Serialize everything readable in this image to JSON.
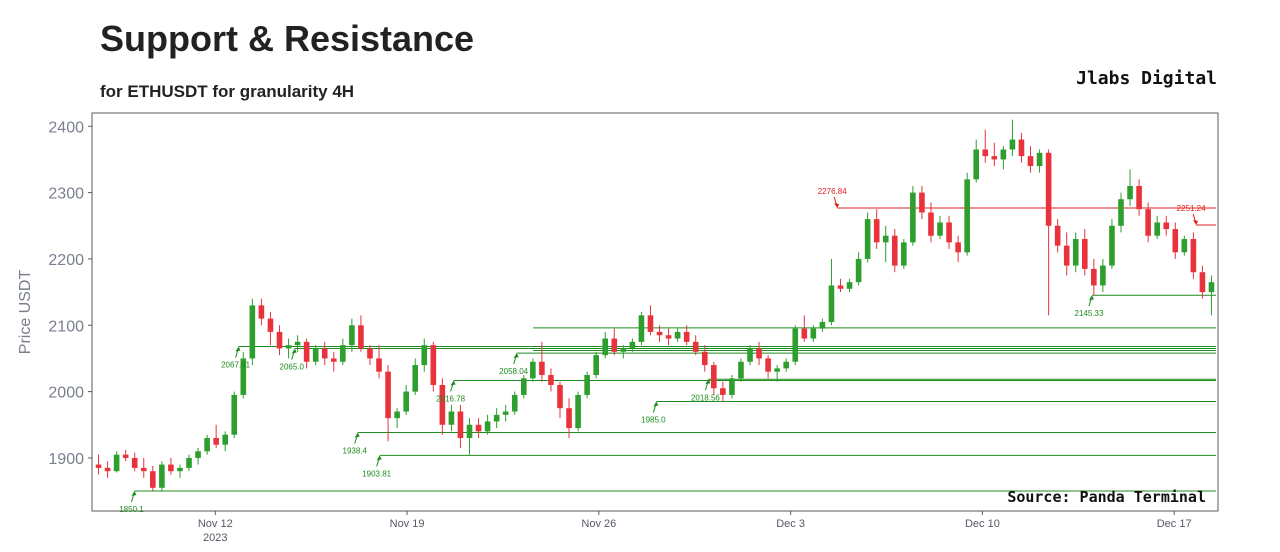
{
  "header": {
    "title": "Support & Resistance",
    "subtitle": "for ETHUSDT for granularity 4H",
    "brand": "Jlabs Digital"
  },
  "chart_data": {
    "type": "candlestick",
    "ylabel": "Price USDT",
    "source": "Source: Panda Terminal",
    "ylim": [
      1820,
      2420
    ],
    "yticks": [
      1900,
      2000,
      2100,
      2200,
      2300,
      2400
    ],
    "xticks": [
      {
        "label": "Nov 12",
        "sub": "2023",
        "day": 12
      },
      {
        "label": "Nov 19",
        "sub": "",
        "day": 19
      },
      {
        "label": "Nov 26",
        "sub": "",
        "day": 26
      },
      {
        "label": "Dec 3",
        "sub": "",
        "day": 33
      },
      {
        "label": "Dec 10",
        "sub": "",
        "day": 40
      },
      {
        "label": "Dec 17",
        "sub": "",
        "day": 47
      }
    ],
    "x_range_days": [
      7.5,
      48.6
    ],
    "grid": false,
    "colors": {
      "up": "#2e9e2e",
      "down": "#e8333c",
      "support": "#1e8c1e",
      "resistance": "#e02020",
      "axis_text": "#7a7f8e"
    },
    "support": [
      {
        "label": "1850.1",
        "value": 1850.1,
        "day": 9.05
      },
      {
        "label": "1938.4",
        "value": 1938.4,
        "day": 17.2
      },
      {
        "label": "1903.81",
        "value": 1903.81,
        "day": 18.0
      },
      {
        "label": "2067.91",
        "value": 2067.91,
        "day": 12.85
      },
      {
        "label": "2065.0",
        "value": 2065.0,
        "day": 14.9
      },
      {
        "label": "2016.78",
        "value": 2016.78,
        "day": 20.7
      },
      {
        "label": "2058.04",
        "value": 2058.04,
        "day": 23.0
      },
      {
        "label": "1985.0",
        "value": 1985.0,
        "day": 28.1
      },
      {
        "label": "2018.56",
        "value": 2018.56,
        "day": 30.0
      },
      {
        "label": "2145.33",
        "value": 2145.33,
        "day": 44.0
      }
    ],
    "support_extra_levels": [
      2062.0,
      2096.0
    ],
    "resistance": [
      {
        "label": "2276.84",
        "value": 2276.84,
        "day": 34.7
      },
      {
        "label": "2251.24",
        "value": 2251.24,
        "day": 47.8
      }
    ],
    "candles": [
      [
        1890,
        1905,
        1875,
        1885
      ],
      [
        1885,
        1895,
        1870,
        1880
      ],
      [
        1880,
        1910,
        1878,
        1905
      ],
      [
        1905,
        1912,
        1895,
        1900
      ],
      [
        1900,
        1908,
        1880,
        1885
      ],
      [
        1885,
        1900,
        1870,
        1880
      ],
      [
        1880,
        1888,
        1850,
        1855
      ],
      [
        1855,
        1895,
        1850,
        1890
      ],
      [
        1890,
        1900,
        1875,
        1880
      ],
      [
        1880,
        1890,
        1870,
        1885
      ],
      [
        1885,
        1905,
        1880,
        1900
      ],
      [
        1900,
        1915,
        1890,
        1910
      ],
      [
        1910,
        1935,
        1905,
        1930
      ],
      [
        1930,
        1950,
        1915,
        1920
      ],
      [
        1920,
        1940,
        1910,
        1935
      ],
      [
        1935,
        2000,
        1930,
        1995
      ],
      [
        1995,
        2060,
        1990,
        2050
      ],
      [
        2050,
        2140,
        2040,
        2130
      ],
      [
        2130,
        2140,
        2100,
        2110
      ],
      [
        2110,
        2120,
        2070,
        2090
      ],
      [
        2090,
        2100,
        2055,
        2065
      ],
      [
        2065,
        2080,
        2050,
        2070
      ],
      [
        2070,
        2085,
        2060,
        2075
      ],
      [
        2075,
        2080,
        2035,
        2045
      ],
      [
        2045,
        2070,
        2040,
        2065
      ],
      [
        2065,
        2075,
        2040,
        2050
      ],
      [
        2050,
        2060,
        2030,
        2045
      ],
      [
        2045,
        2080,
        2040,
        2070
      ],
      [
        2070,
        2110,
        2060,
        2100
      ],
      [
        2100,
        2115,
        2060,
        2065
      ],
      [
        2065,
        2070,
        2040,
        2050
      ],
      [
        2050,
        2070,
        2020,
        2030
      ],
      [
        2030,
        2040,
        1925,
        1960
      ],
      [
        1960,
        1975,
        1945,
        1970
      ],
      [
        1970,
        2010,
        1965,
        2000
      ],
      [
        2000,
        2050,
        1995,
        2040
      ],
      [
        2040,
        2080,
        2030,
        2070
      ],
      [
        2070,
        2075,
        2000,
        2010
      ],
      [
        2010,
        2020,
        1935,
        1950
      ],
      [
        1950,
        1980,
        1940,
        1970
      ],
      [
        1970,
        1980,
        1915,
        1930
      ],
      [
        1930,
        1960,
        1905,
        1950
      ],
      [
        1950,
        1960,
        1930,
        1940
      ],
      [
        1940,
        1965,
        1935,
        1955
      ],
      [
        1955,
        1975,
        1945,
        1965
      ],
      [
        1965,
        1980,
        1955,
        1970
      ],
      [
        1970,
        2000,
        1965,
        1995
      ],
      [
        1995,
        2025,
        1990,
        2020
      ],
      [
        2020,
        2050,
        2015,
        2045
      ],
      [
        2045,
        2075,
        2015,
        2025
      ],
      [
        2025,
        2035,
        2000,
        2010
      ],
      [
        2010,
        2015,
        1960,
        1975
      ],
      [
        1975,
        1990,
        1930,
        1945
      ],
      [
        1945,
        2000,
        1940,
        1995
      ],
      [
        1995,
        2030,
        1990,
        2025
      ],
      [
        2025,
        2060,
        2020,
        2055
      ],
      [
        2055,
        2090,
        2050,
        2080
      ],
      [
        2080,
        2095,
        2055,
        2060
      ],
      [
        2060,
        2070,
        2050,
        2065
      ],
      [
        2065,
        2080,
        2060,
        2075
      ],
      [
        2075,
        2120,
        2070,
        2115
      ],
      [
        2115,
        2130,
        2085,
        2090
      ],
      [
        2090,
        2100,
        2075,
        2085
      ],
      [
        2085,
        2095,
        2070,
        2080
      ],
      [
        2080,
        2095,
        2075,
        2090
      ],
      [
        2090,
        2100,
        2070,
        2075
      ],
      [
        2075,
        2085,
        2055,
        2060
      ],
      [
        2060,
        2070,
        2030,
        2040
      ],
      [
        2040,
        2045,
        1995,
        2005
      ],
      [
        2005,
        2015,
        1985,
        1995
      ],
      [
        1995,
        2025,
        1990,
        2020
      ],
      [
        2020,
        2050,
        2015,
        2045
      ],
      [
        2045,
        2070,
        2040,
        2065
      ],
      [
        2065,
        2075,
        2040,
        2050
      ],
      [
        2050,
        2055,
        2020,
        2030
      ],
      [
        2030,
        2040,
        2015,
        2035
      ],
      [
        2035,
        2050,
        2030,
        2045
      ],
      [
        2045,
        2100,
        2040,
        2095
      ],
      [
        2095,
        2115,
        2075,
        2080
      ],
      [
        2080,
        2100,
        2075,
        2095
      ],
      [
        2095,
        2110,
        2090,
        2105
      ],
      [
        2105,
        2200,
        2100,
        2160
      ],
      [
        2160,
        2170,
        2150,
        2155
      ],
      [
        2155,
        2170,
        2150,
        2165
      ],
      [
        2165,
        2210,
        2160,
        2200
      ],
      [
        2200,
        2270,
        2195,
        2260
      ],
      [
        2260,
        2275,
        2215,
        2225
      ],
      [
        2225,
        2250,
        2195,
        2235
      ],
      [
        2235,
        2245,
        2180,
        2190
      ],
      [
        2190,
        2230,
        2185,
        2225
      ],
      [
        2225,
        2310,
        2220,
        2300
      ],
      [
        2300,
        2310,
        2260,
        2270
      ],
      [
        2270,
        2285,
        2225,
        2235
      ],
      [
        2235,
        2265,
        2230,
        2255
      ],
      [
        2255,
        2265,
        2215,
        2225
      ],
      [
        2225,
        2235,
        2195,
        2210
      ],
      [
        2210,
        2330,
        2205,
        2320
      ],
      [
        2320,
        2380,
        2315,
        2365
      ],
      [
        2365,
        2395,
        2345,
        2355
      ],
      [
        2355,
        2375,
        2340,
        2350
      ],
      [
        2350,
        2370,
        2335,
        2365
      ],
      [
        2365,
        2410,
        2355,
        2380
      ],
      [
        2380,
        2390,
        2345,
        2355
      ],
      [
        2355,
        2370,
        2330,
        2340
      ],
      [
        2340,
        2365,
        2330,
        2360
      ],
      [
        2360,
        2365,
        2115,
        2250
      ],
      [
        2250,
        2260,
        2210,
        2220
      ],
      [
        2220,
        2240,
        2175,
        2190
      ],
      [
        2190,
        2240,
        2180,
        2230
      ],
      [
        2230,
        2245,
        2175,
        2185
      ],
      [
        2185,
        2200,
        2145,
        2160
      ],
      [
        2160,
        2200,
        2150,
        2190
      ],
      [
        2190,
        2260,
        2185,
        2250
      ],
      [
        2250,
        2300,
        2240,
        2290
      ],
      [
        2290,
        2335,
        2280,
        2310
      ],
      [
        2310,
        2320,
        2265,
        2275
      ],
      [
        2275,
        2285,
        2225,
        2235
      ],
      [
        2235,
        2265,
        2230,
        2255
      ],
      [
        2255,
        2265,
        2235,
        2245
      ],
      [
        2245,
        2255,
        2200,
        2210
      ],
      [
        2210,
        2235,
        2205,
        2230
      ],
      [
        2230,
        2240,
        2170,
        2180
      ],
      [
        2180,
        2190,
        2140,
        2150
      ],
      [
        2150,
        2175,
        2115,
        2165
      ]
    ]
  }
}
